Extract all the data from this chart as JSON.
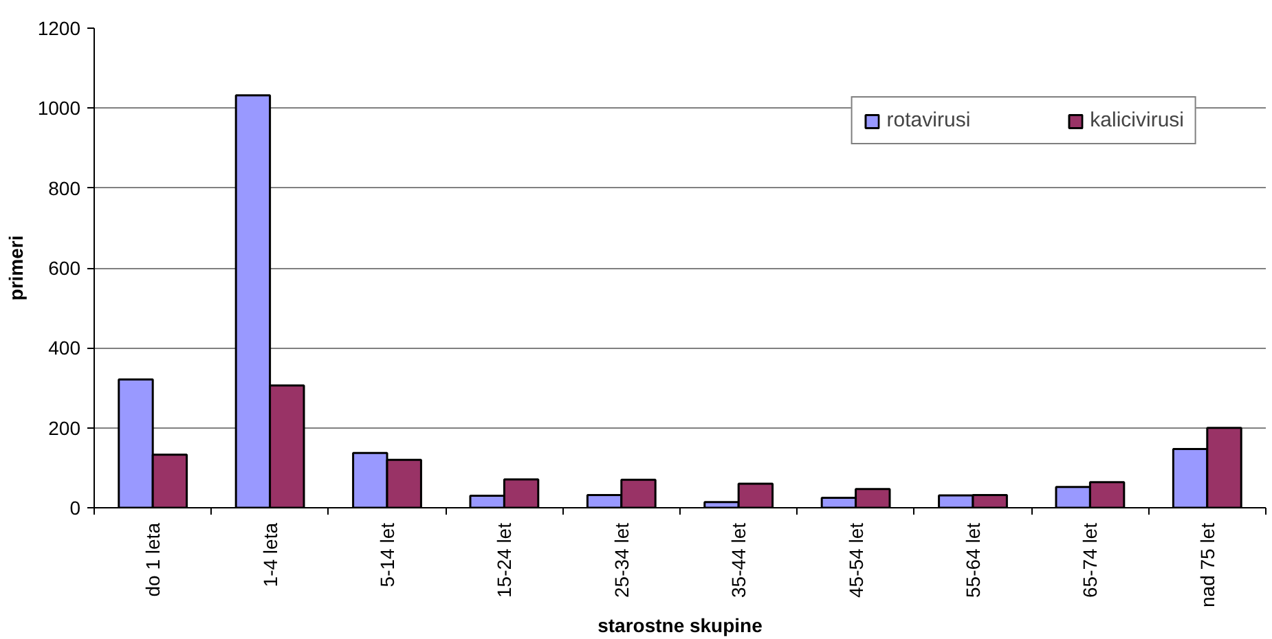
{
  "chart_data": {
    "type": "bar",
    "xlabel": "starostne skupine",
    "ylabel": "primeri",
    "categories": [
      "do 1 leta",
      "1-4 leta",
      "5-14 let",
      "15-24 let",
      "25-34 let",
      "35-44 let",
      "45-54 let",
      "55-64 let",
      "65-74 let",
      "nad 75 let"
    ],
    "series": [
      {
        "name": "rotavirusi",
        "color": "#9999ff",
        "values": [
          321,
          1032,
          137,
          30,
          32,
          14,
          25,
          31,
          52,
          147
        ]
      },
      {
        "name": "kalicivirusi",
        "color": "#993366",
        "values": [
          133,
          306,
          120,
          71,
          70,
          60,
          47,
          32,
          64,
          200
        ]
      }
    ],
    "ylim": [
      0,
      1200
    ],
    "yticks": [
      0,
      200,
      400,
      600,
      800,
      1000,
      1200
    ],
    "grid": "y",
    "legend": "top right"
  }
}
